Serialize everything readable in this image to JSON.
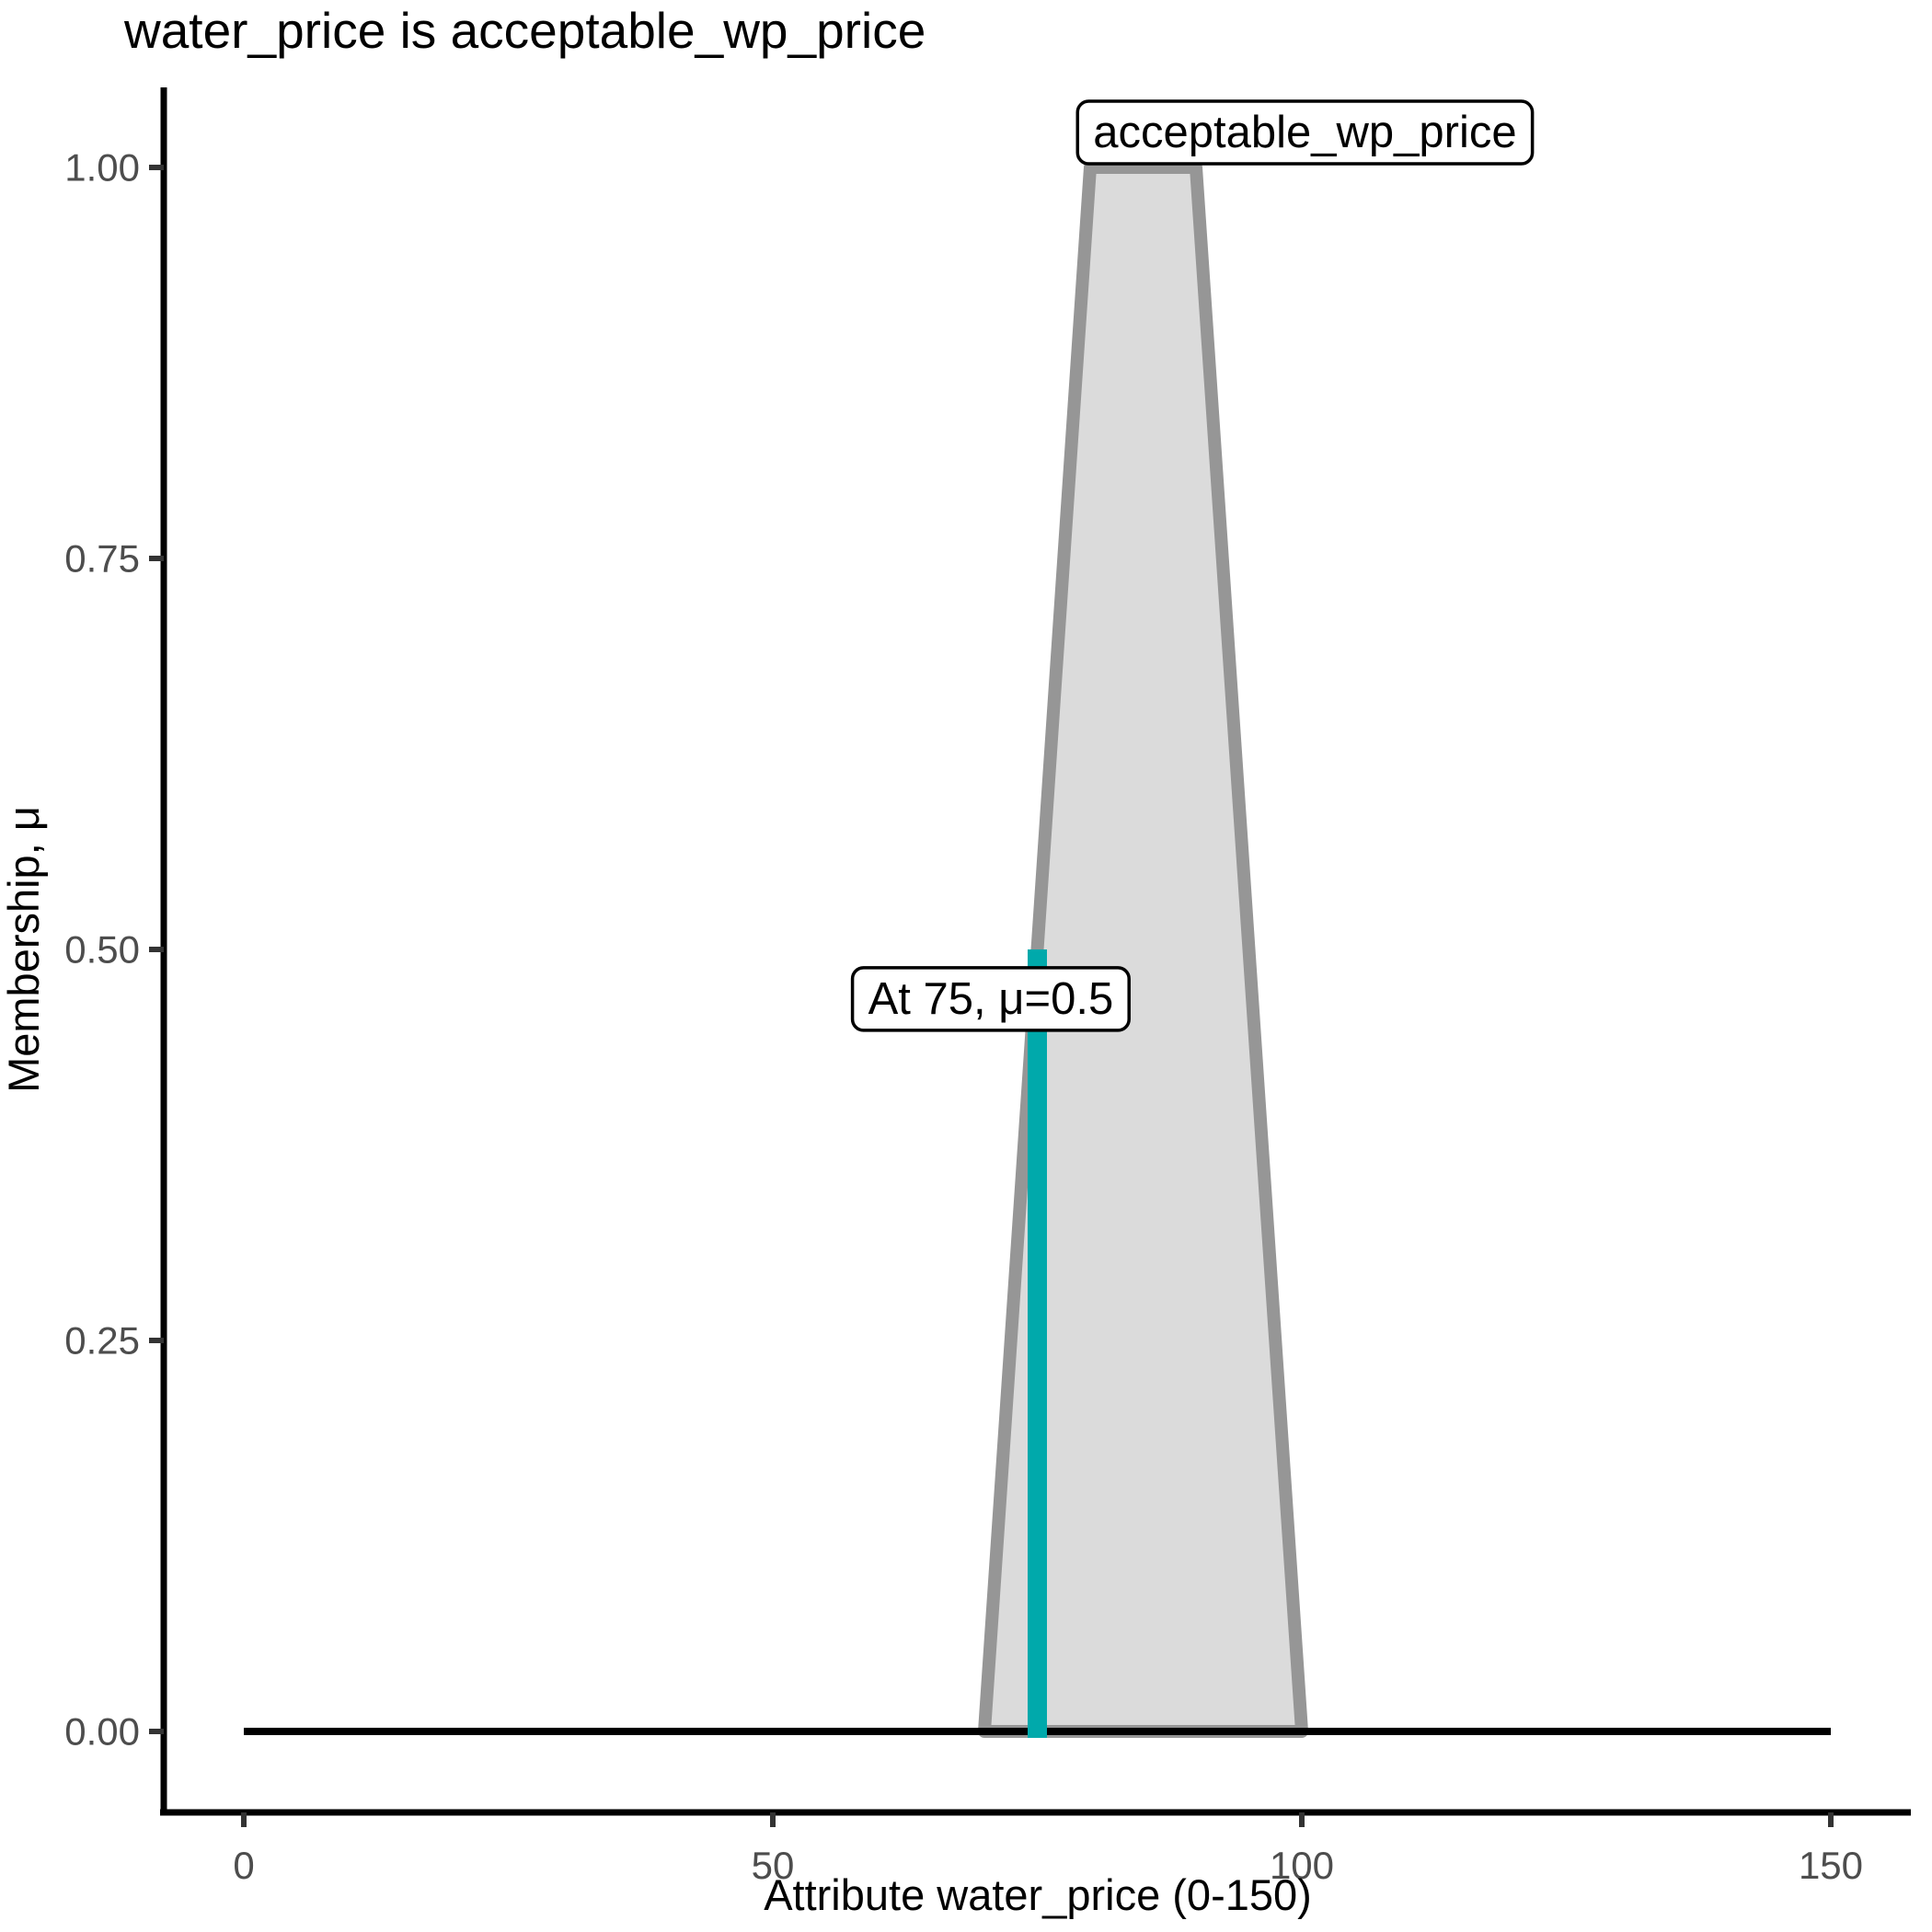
{
  "chart_data": {
    "type": "line",
    "title": "water_price is acceptable_wp_price",
    "xlabel": "Attribute water_price (0-150)",
    "ylabel": "Membership, μ",
    "xlim": [
      0,
      150
    ],
    "ylim": [
      0,
      1
    ],
    "grid": false,
    "background": "#FFFFFF",
    "x_ticks": {
      "values": [
        0,
        50,
        100,
        150
      ],
      "labels": [
        "0",
        "50",
        "100",
        "150"
      ]
    },
    "y_ticks": {
      "values": [
        0,
        0.25,
        0.5,
        0.75,
        1.0
      ],
      "labels": [
        "0.00",
        "0.25",
        "0.50",
        "0.75",
        "1.00"
      ]
    },
    "membership_function": {
      "name": "acceptable_wp_price",
      "shape": "trapezoid",
      "params": [
        70,
        80,
        90,
        100
      ],
      "points": [
        [
          70,
          0
        ],
        [
          80,
          1
        ],
        [
          90,
          1
        ],
        [
          100,
          0
        ]
      ],
      "fill": "#DBDBDB",
      "stroke": "#969696"
    },
    "universe_line": {
      "points": [
        [
          0,
          0
        ],
        [
          150,
          0
        ]
      ],
      "color": "#000000"
    },
    "input_line": {
      "x": 75,
      "mu": 0.5,
      "points": [
        [
          75,
          0
        ],
        [
          75,
          0.5
        ]
      ],
      "color": "#00A9AB"
    },
    "annotations": [
      {
        "id": "mf-label",
        "text": "acceptable_wp_price",
        "x": 100.3,
        "y": 1.023
      },
      {
        "id": "input-label",
        "text": "At 75, μ=0.5",
        "x": 70.6,
        "y": 0.469
      }
    ],
    "colors": {
      "axis": "#000000",
      "tick_mark": "#333333",
      "tick_label": "#4D4D4D",
      "label_box_bg": "#FFFFFF",
      "label_box_border": "#000000"
    }
  }
}
